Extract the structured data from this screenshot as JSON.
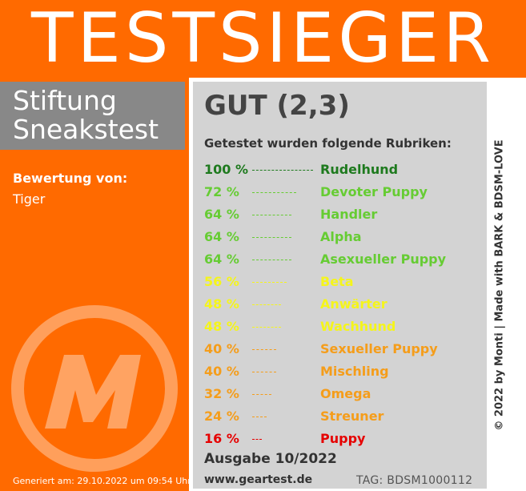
{
  "header": {
    "title": "TESTSIEGER"
  },
  "brand": {
    "line1": "Stiftung",
    "line2": "Sneakstest"
  },
  "rating": {
    "label": "Bewertung von:",
    "value": "Tiger"
  },
  "footer_left": {
    "generated": "Generiert am: 29.10.2022 um 09:54 Uhr"
  },
  "result": {
    "grade": "GUT (2,3)",
    "intro": "Getestet wurden folgende Rubriken:",
    "categories": [
      {
        "percent": "100 %",
        "value": 100,
        "name": "Rudelhund",
        "color": "#1e7a1e"
      },
      {
        "percent": "72 %",
        "value": 72,
        "name": "Devoter Puppy",
        "color": "#66cc33"
      },
      {
        "percent": "64 %",
        "value": 64,
        "name": "Handler",
        "color": "#66cc33"
      },
      {
        "percent": "64 %",
        "value": 64,
        "name": "Alpha",
        "color": "#66cc33"
      },
      {
        "percent": "64 %",
        "value": 64,
        "name": "Asexueller Puppy",
        "color": "#66cc33"
      },
      {
        "percent": "56 %",
        "value": 56,
        "name": "Beta",
        "color": "#f5f51a"
      },
      {
        "percent": "48 %",
        "value": 48,
        "name": "Anwärter",
        "color": "#f5f51a"
      },
      {
        "percent": "48 %",
        "value": 48,
        "name": "Wachhund",
        "color": "#f5f51a"
      },
      {
        "percent": "40 %",
        "value": 40,
        "name": "Sexueller Puppy",
        "color": "#f59d1a"
      },
      {
        "percent": "40 %",
        "value": 40,
        "name": "Mischling",
        "color": "#f59d1a"
      },
      {
        "percent": "32 %",
        "value": 32,
        "name": "Omega",
        "color": "#f59d1a"
      },
      {
        "percent": "24 %",
        "value": 24,
        "name": "Streuner",
        "color": "#f59d1a"
      },
      {
        "percent": "16 %",
        "value": 16,
        "name": "Puppy",
        "color": "#e60000"
      }
    ],
    "issue": "Ausgabe 10/2022",
    "website": "www.geartest.de",
    "tag": "TAG: BDSM1000112"
  },
  "credit": "© 2022 by Monti | Made with BARK & BDSM-LOVE",
  "colors": {
    "accent": "#ff6a00",
    "brand_box": "#888888",
    "result_panel": "#d3d3d3"
  },
  "icons": {
    "logo": "m-logo-icon"
  }
}
